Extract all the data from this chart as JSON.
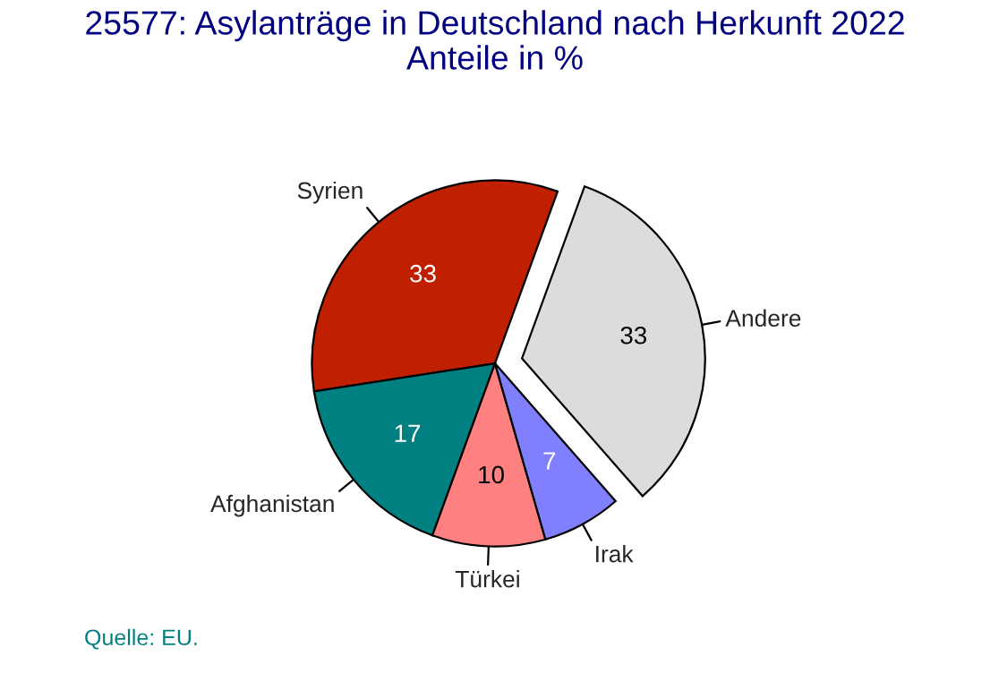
{
  "chart_data": {
    "type": "pie",
    "title": "25577: Asylanträge in Deutschland nach Herkunft 2022\nAnteile in %",
    "categories": [
      "Syrien",
      "Afghanistan",
      "Türkei",
      "Irak",
      "Andere"
    ],
    "values": [
      33,
      17,
      10,
      7,
      33
    ],
    "colors": [
      "#c02000",
      "#008080",
      "#ff8080",
      "#8080ff",
      "#dcdcdc"
    ],
    "data_labels": true,
    "annotations": [
      "Quelle: EU."
    ]
  }
}
